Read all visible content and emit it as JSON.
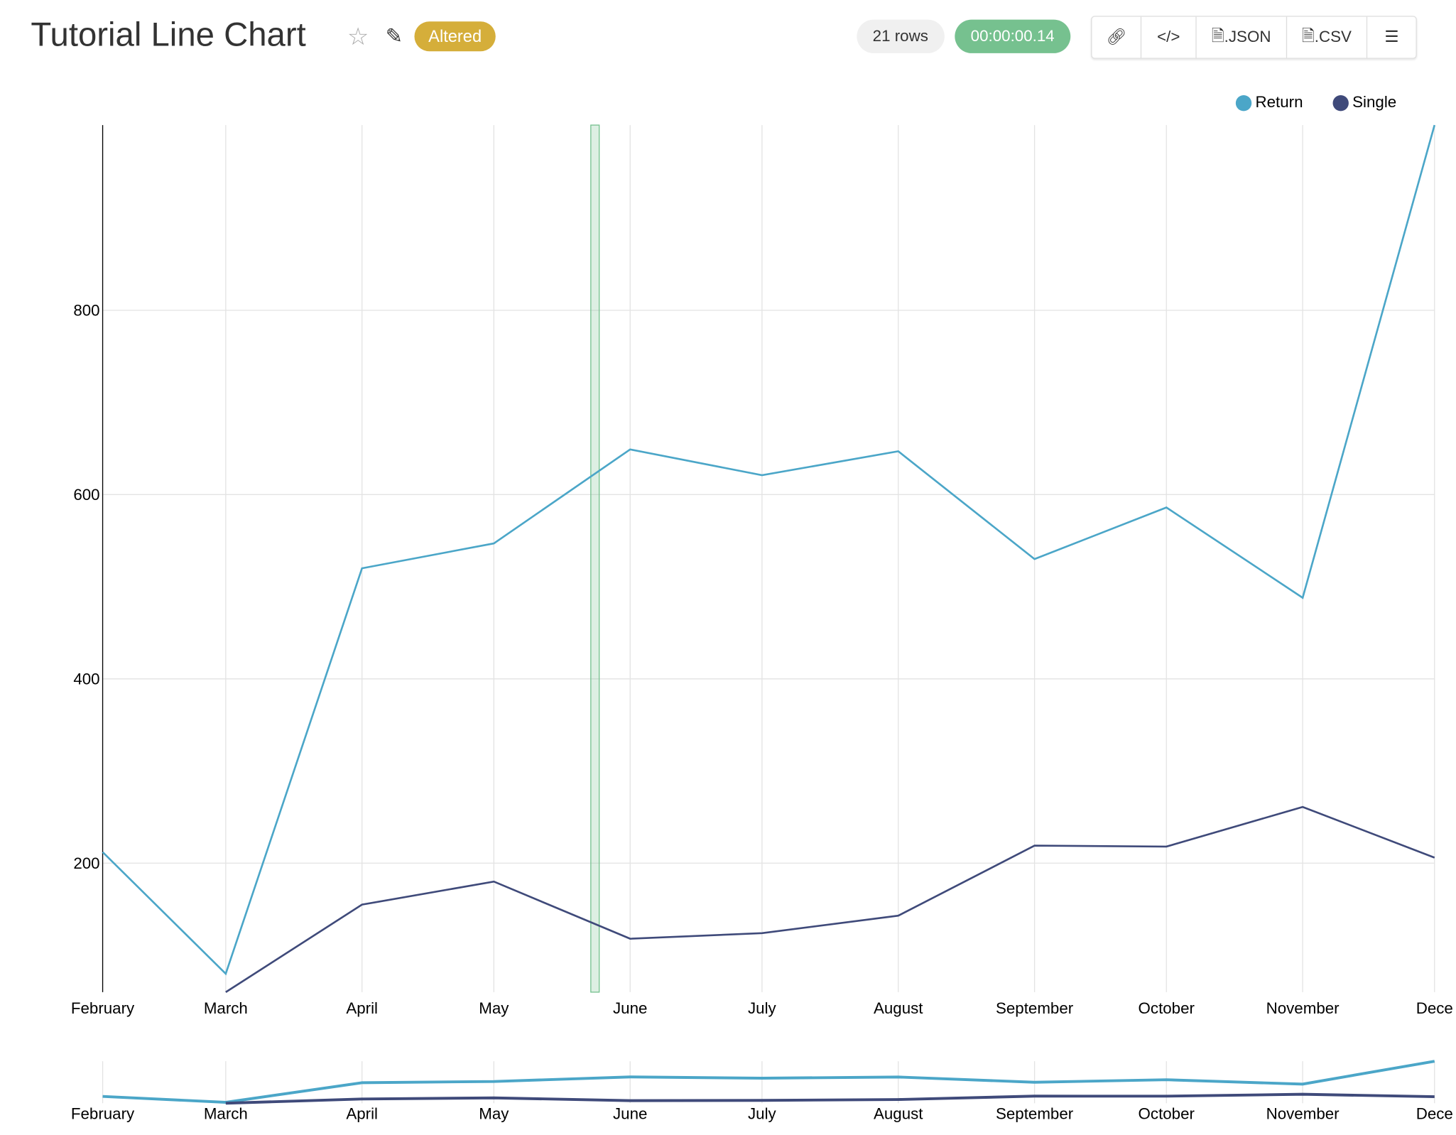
{
  "header": {
    "title": "Tutorial Line Chart",
    "badge": "Altered",
    "rows": "21 rows",
    "time": "00:00:00.14",
    "buttons": {
      "link": "link-icon",
      "embed": "</>",
      "json": ".JSON",
      "csv": ".CSV",
      "menu": "menu-icon"
    }
  },
  "colors": {
    "return": "#4ba6c8",
    "single": "#3f4a7a",
    "highlight": "#76c18f"
  },
  "chart_data": {
    "type": "line",
    "title": "",
    "xlabel": "",
    "ylabel": "",
    "categories": [
      "February",
      "March",
      "April",
      "May",
      "June",
      "July",
      "August",
      "September",
      "October",
      "November",
      "December"
    ],
    "tick_labels": [
      "February",
      "March",
      "April",
      "May",
      "June",
      "July",
      "August",
      "September",
      "October",
      "November",
      "Dece"
    ],
    "yticks": [
      200,
      400,
      600,
      800
    ],
    "ylim": [
      60,
      1001
    ],
    "grid": true,
    "legend": "top-right",
    "series": [
      {
        "name": "Return",
        "values": [
          212,
          80,
          520,
          547,
          649,
          621,
          647,
          530,
          586,
          488,
          1001
        ]
      },
      {
        "name": "Single",
        "values": [
          null,
          60,
          155,
          180,
          118,
          124,
          143,
          219,
          218,
          261,
          206
        ]
      }
    ]
  }
}
